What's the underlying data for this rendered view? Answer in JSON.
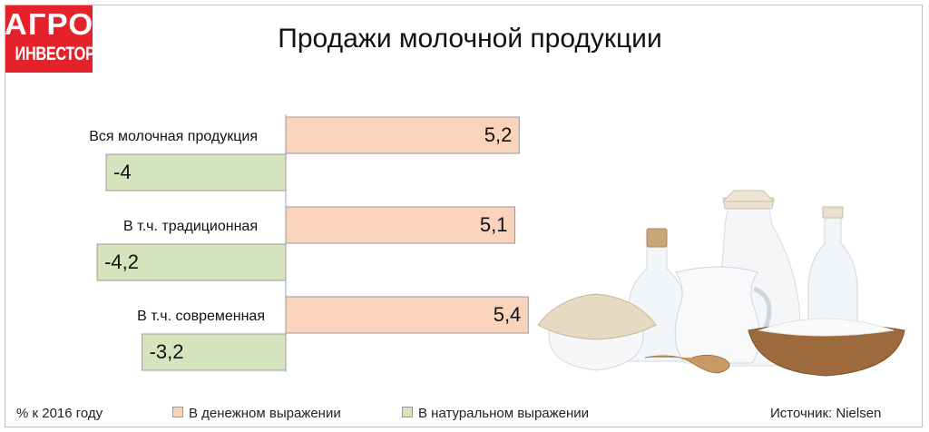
{
  "logo": {
    "line1": "АГРО",
    "line2": "ИНВЕСТОР"
  },
  "title": "Продажи молочной продукции",
  "chart_data": {
    "type": "bar",
    "orientation": "horizontal",
    "title": "Продажи молочной продукции",
    "unit_note": "% к 2016 году",
    "categories": [
      "Вся молочная продукция",
      "В т.ч. традиционная",
      "В т.ч. современная"
    ],
    "series": [
      {
        "name": "В денежном выражении",
        "values": [
          5.2,
          5.1,
          5.4
        ],
        "labels": [
          "5,2",
          "5,1",
          "5,4"
        ],
        "color": "#f9d3bb"
      },
      {
        "name": "В натуральном выражении",
        "values": [
          -4,
          -4.2,
          -3.2
        ],
        "labels": [
          "-4",
          "-4,2",
          "-3,2"
        ],
        "color": "#d6e4be"
      }
    ],
    "source": "Источник: Nielsen"
  },
  "colors": {
    "logo_red": "#e4222b",
    "bar_border": "#9a9a9a",
    "axis": "#8aa8cc"
  },
  "illustration": {
    "icon": "dairy-products-photo"
  }
}
